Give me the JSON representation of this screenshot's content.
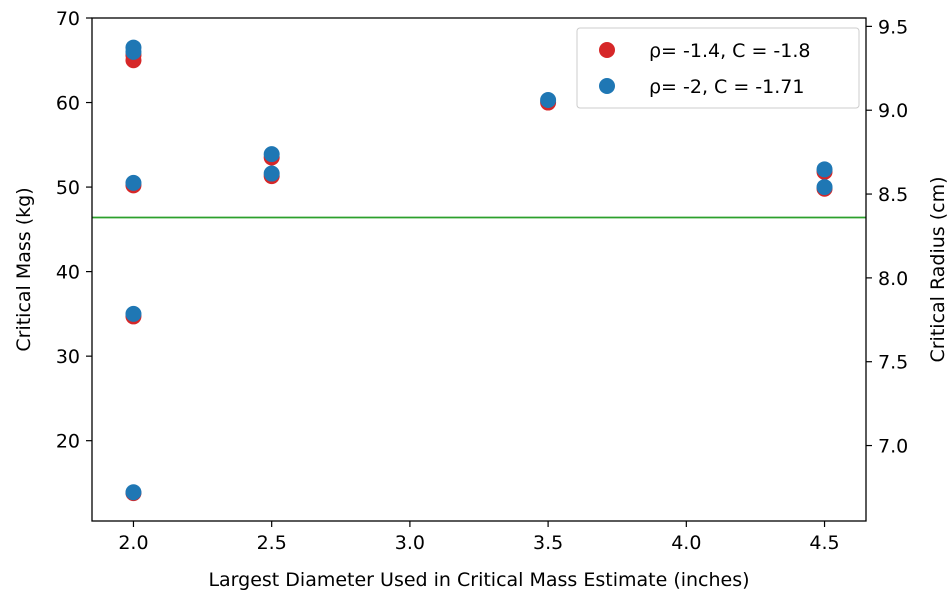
{
  "chart_data": {
    "type": "scatter",
    "xlabel": "Largest Diameter Used in Critical Mass Estimate (inches)",
    "ylabel": "Critical Mass (kg)",
    "y2label": "Critical Radius (cm)",
    "xlim": [
      1.85,
      4.65
    ],
    "ylim": [
      10.5,
      70
    ],
    "y2lim": [
      6.55,
      9.55
    ],
    "xticks": [
      "2.0",
      "2.5",
      "3.0",
      "3.5",
      "4.0",
      "4.5"
    ],
    "yticks": [
      "20",
      "30",
      "40",
      "50",
      "60",
      "70"
    ],
    "y2ticks": [
      "7.0",
      "7.5",
      "8.0",
      "8.5",
      "9.0",
      "9.5"
    ],
    "hline": {
      "y": 46.4,
      "color": "#2ca02c"
    },
    "legend": {
      "position": "top-right"
    },
    "series": [
      {
        "name": "ρ= -1.4, C = -1.8",
        "color": "#d62728",
        "points": [
          [
            2.0,
            65.0
          ],
          [
            2.0,
            65.6
          ],
          [
            2.0,
            50.2
          ],
          [
            2.0,
            34.7
          ],
          [
            2.0,
            13.8
          ],
          [
            2.5,
            53.5
          ],
          [
            2.5,
            51.3
          ],
          [
            3.5,
            60.0
          ],
          [
            4.5,
            51.8
          ],
          [
            4.5,
            49.8
          ]
        ]
      },
      {
        "name": "ρ= -2, C = -1.71",
        "color": "#1f77b4",
        "points": [
          [
            2.0,
            66.5
          ],
          [
            2.0,
            66.0
          ],
          [
            2.0,
            50.5
          ],
          [
            2.0,
            35.0
          ],
          [
            2.0,
            13.9
          ],
          [
            2.5,
            53.9
          ],
          [
            2.5,
            51.6
          ],
          [
            3.5,
            60.3
          ],
          [
            4.5,
            52.1
          ],
          [
            4.5,
            50.0
          ]
        ]
      }
    ]
  }
}
